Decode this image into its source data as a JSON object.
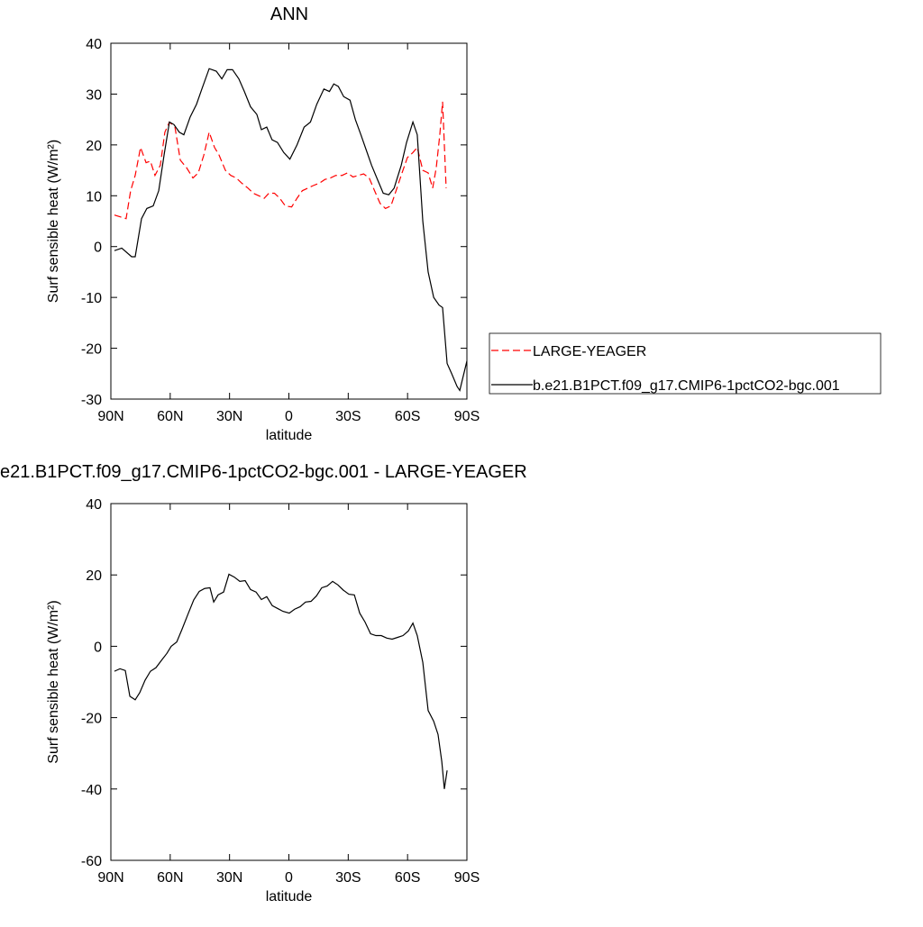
{
  "chart_data": [
    {
      "type": "line",
      "title": "ANN",
      "xlabel": "latitude",
      "ylabel": "Surf sensible heat (W/m²)",
      "xlim": [
        90,
        -90
      ],
      "xticks": [
        {
          "value": 90,
          "label": "90N"
        },
        {
          "value": 60,
          "label": "60N"
        },
        {
          "value": 30,
          "label": "30N"
        },
        0,
        {
          "value": -30,
          "label": "30S"
        },
        {
          "value": -60,
          "label": "60S"
        },
        {
          "value": -90,
          "label": "90S"
        }
      ],
      "ylim": [
        -30,
        40
      ],
      "yticks": [
        -30,
        -20,
        -10,
        0,
        10,
        20,
        30,
        40
      ],
      "legend": "outside right",
      "series": [
        {
          "name": "LARGE-YEAGER",
          "color": "#ff0000",
          "dashed": true,
          "x": [
            88.2,
            82.3,
            80,
            77.7,
            75,
            72.2,
            70,
            67.7,
            65,
            62.7,
            60.4,
            57.6,
            54.9,
            51.7,
            48.5,
            45.8,
            43,
            40.3,
            37.6,
            35.3,
            32.1,
            29.4,
            26.6,
            23.9,
            20.7,
            18,
            15.2,
            12.5,
            10.1,
            7.3,
            4.6,
            1.8,
            -1.4,
            -4.1,
            -6.8,
            -9.6,
            -12.3,
            -15.5,
            -18.2,
            -21,
            -23.7,
            -26.9,
            -29.6,
            -32.4,
            -35.1,
            -37.8,
            -40.6,
            -43.3,
            -46.1,
            -48.8,
            -51.6,
            -54.2,
            -57.2,
            -59.9,
            -62.7,
            -64.9,
            -67.7,
            -70.4,
            -72.7,
            -74.5,
            -76.3,
            -77.7,
            -79.5
          ],
          "values": [
            6.2,
            5.5,
            11,
            14,
            19.5,
            16.5,
            16.8,
            14,
            16,
            22.5,
            24.5,
            23.5,
            17,
            15.5,
            13.5,
            14.5,
            18,
            22.5,
            19.5,
            18,
            15,
            14,
            13.5,
            12.5,
            11.5,
            10.5,
            10,
            9.5,
            10.5,
            10.5,
            9.5,
            8,
            7.8,
            9.5,
            11,
            11.5,
            12,
            12.5,
            13.2,
            13.5,
            14,
            14,
            14.5,
            13.7,
            14,
            14.3,
            13.5,
            11,
            8.5,
            7.5,
            8,
            11,
            14.5,
            17.5,
            18.5,
            19.5,
            15,
            14.5,
            11.5,
            15.5,
            22,
            28.5,
            11.5
          ]
        },
        {
          "name": "b.e21.B1PCT.f09_g17.CMIP6-1pctCO2-bgc.001",
          "color": "#000000",
          "dashed": false,
          "x": [
            88.2,
            84.5,
            79.5,
            77.7,
            74.5,
            71.8,
            68.6,
            65.8,
            63.1,
            60.4,
            58.1,
            55.4,
            53.1,
            49.9,
            46.7,
            44,
            40.3,
            36.7,
            33.9,
            31.2,
            28.5,
            25.3,
            22.5,
            19.4,
            16.2,
            13.9,
            11.2,
            8.5,
            5.8,
            2.6,
            -0.5,
            -4.1,
            -7.7,
            -10.9,
            -14.1,
            -17.7,
            -20.5,
            -22.7,
            -25,
            -27.7,
            -30.9,
            -33.6,
            -36.4,
            -39.1,
            -41.8,
            -45,
            -47.7,
            -50.5,
            -53.2,
            -56.8,
            -59.5,
            -62.7,
            -64.9,
            -67.7,
            -70.4,
            -73.2,
            -75.9,
            -77.7,
            -80,
            -82.3,
            -85,
            -86.4,
            -90
          ],
          "values": [
            -0.8,
            -0.3,
            -2,
            -2,
            5.5,
            7.5,
            8,
            11,
            18,
            24.5,
            24,
            22.5,
            22,
            25.5,
            28,
            31,
            35,
            34.5,
            33,
            34.8,
            34.8,
            33,
            30.5,
            27.5,
            26,
            23,
            23.5,
            21,
            20.5,
            18.5,
            17.2,
            20,
            23.5,
            24.5,
            28,
            31,
            30.5,
            32,
            31.5,
            29.5,
            28.8,
            25,
            22,
            19,
            16,
            13,
            10.5,
            10.2,
            11.5,
            16,
            20.5,
            24.5,
            22,
            5,
            -5,
            -10,
            -11.5,
            -12,
            -23,
            -25,
            -27.5,
            -28.3,
            -22.5
          ]
        }
      ]
    },
    {
      "type": "line",
      "title": "e21.B1PCT.f09_g17.CMIP6-1pctCO2-bgc.001 - LARGE-YEAGER",
      "xlabel": "latitude",
      "ylabel": "Surf sensible heat (W/m²)",
      "xlim": [
        90,
        -90
      ],
      "xticks": [
        {
          "value": 90,
          "label": "90N"
        },
        {
          "value": 60,
          "label": "60N"
        },
        {
          "value": 30,
          "label": "30N"
        },
        0,
        {
          "value": -30,
          "label": "30S"
        },
        {
          "value": -60,
          "label": "60S"
        },
        {
          "value": -90,
          "label": "90S"
        }
      ],
      "ylim": [
        -60,
        40
      ],
      "yticks": [
        -60,
        -40,
        -20,
        0,
        20,
        40
      ],
      "color": "#000000",
      "x": [
        88.2,
        85.4,
        82.7,
        80.4,
        77.7,
        75.4,
        72.7,
        70,
        67.2,
        64.5,
        61.7,
        59.5,
        56.7,
        54,
        50.8,
        48.1,
        45.3,
        42.6,
        39.9,
        38,
        35.8,
        33,
        30.3,
        27.6,
        24.8,
        22.1,
        19.4,
        16.6,
        13.9,
        11.2,
        8.4,
        5.7,
        3,
        -0.2,
        -2.9,
        -5.7,
        -8.4,
        -11.2,
        -13.9,
        -16.6,
        -19.4,
        -22.1,
        -24.8,
        -27.6,
        -30.3,
        -33.1,
        -35.8,
        -38.5,
        -41.3,
        -44,
        -46.7,
        -49.5,
        -52.2,
        -55,
        -57.7,
        -60.4,
        -62.7,
        -64.9,
        -67.7,
        -70.4,
        -73.2,
        -75.4,
        -77.3,
        -78.6,
        -80
      ],
      "values": [
        -7,
        -6.3,
        -6.8,
        -14,
        -15,
        -13,
        -9.5,
        -7,
        -6,
        -4,
        -2,
        0,
        1.2,
        4.8,
        9.3,
        13,
        15.4,
        16.2,
        16.4,
        12.4,
        14.4,
        15.2,
        20.2,
        19.4,
        18.2,
        18.4,
        15.9,
        15.2,
        13.1,
        13.9,
        11.4,
        10.6,
        9.8,
        9.3,
        10.4,
        11.1,
        12.4,
        12.6,
        14.1,
        16.4,
        16.9,
        18.2,
        17.2,
        15.7,
        14.6,
        14.4,
        9.3,
        6.8,
        3.5,
        3,
        3,
        2.3,
        2,
        2.5,
        3,
        4.3,
        6.5,
        3,
        -4.5,
        -18,
        -21,
        -24.7,
        -32.3,
        -40,
        -34.8
      ]
    }
  ]
}
